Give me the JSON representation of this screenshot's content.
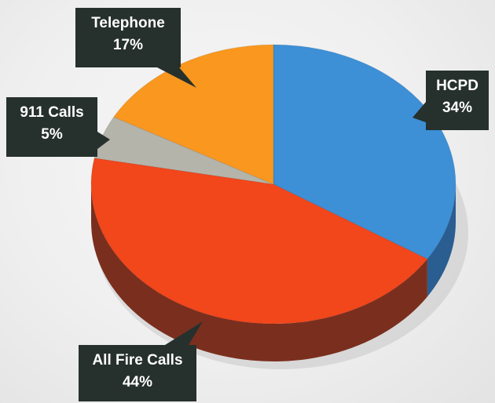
{
  "chart_data": {
    "type": "pie",
    "categories": [
      "HCPD",
      "All Fire Calls",
      "911 Calls",
      "Telephone"
    ],
    "values": [
      34,
      44,
      5,
      17
    ],
    "value_labels": [
      "34%",
      "44%",
      "5%",
      "17%"
    ],
    "colors": [
      "#3d8fd6",
      "#f2461b",
      "#b4b4ab",
      "#f9971e"
    ],
    "side_colors": [
      "#2a5d90",
      "#7a2f1e",
      "#6b6b65",
      "#a86413"
    ],
    "title": "",
    "legend": "none",
    "three_d": true
  },
  "background_color": "#efefef",
  "callout_color": "#26302c"
}
